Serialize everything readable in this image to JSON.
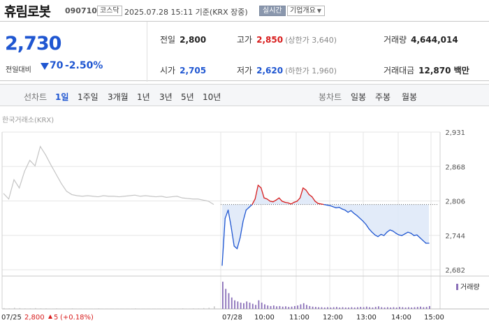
{
  "header": {
    "stock_name": "휴림로봇",
    "stock_code": "090710",
    "market": "코스닥",
    "basis_time": "2025.07.28 15:11 기준(KRX 장중)",
    "realtime_label": "실시간",
    "info_button_label": "기업개요"
  },
  "summary": {
    "current_price": "2,730",
    "change_label": "전일대비",
    "change_direction": "down",
    "change_value": "70",
    "change_percent": "-2.50%",
    "prev_close_label": "전일",
    "prev_close": "2,800",
    "high_label": "고가",
    "high": "2,850",
    "upper_limit": "(상한가 3,640)",
    "volume_label": "거래량",
    "volume": "4,644,014",
    "open_label": "시가",
    "open": "2,705",
    "low_label": "저가",
    "low": "2,620",
    "lower_limit": "(하한가 1,960)",
    "amount_label": "거래대금",
    "amount": "12,870 백만"
  },
  "tabs": {
    "line_label": "선차트",
    "periods": [
      "1일",
      "1주일",
      "3개월",
      "1년",
      "3년",
      "5년",
      "10년"
    ],
    "active_period": "1일",
    "candle_label": "봉차트",
    "candles": [
      "일봉",
      "주봉",
      "월봉"
    ]
  },
  "chart": {
    "source_label": "한국거래소(KRX)",
    "volume_legend": "거래량",
    "prev_day_summary": {
      "date": "07/25",
      "price": "2,800",
      "change": "5",
      "change_pct": "(+0.18%)"
    },
    "colors": {
      "up": "#d81c1c",
      "down": "#1f56d1",
      "prev_day": "#c4c4c4",
      "volume": "#8a6fb8",
      "fill": "#dde8f8"
    }
  },
  "chart_data": {
    "type": "line",
    "y_ticks": [
      "2,931",
      "2,868",
      "2,806",
      "2,744",
      "2,682"
    ],
    "ylim": [
      2682,
      2931
    ],
    "reference_value": 2800,
    "x_ticks": [
      "07/25",
      "07/28",
      "10:00",
      "11:00",
      "12:00",
      "13:00",
      "14:00",
      "15:00"
    ],
    "prev_day_series": {
      "date": "07/25",
      "values": [
        2820,
        2810,
        2845,
        2830,
        2860,
        2880,
        2870,
        2905,
        2890,
        2872,
        2855,
        2838,
        2824,
        2818,
        2816,
        2815,
        2816,
        2815,
        2814,
        2816,
        2815,
        2815,
        2814,
        2815,
        2816,
        2817,
        2815,
        2816,
        2815,
        2814,
        2815,
        2813,
        2814,
        2815,
        2812,
        2811,
        2810,
        2810,
        2808,
        2806,
        2800
      ]
    },
    "today_series": {
      "date": "07/28",
      "time_start": "09:00",
      "time_end": "15:11",
      "values": [
        2690,
        2775,
        2790,
        2760,
        2725,
        2720,
        2740,
        2770,
        2790,
        2795,
        2800,
        2810,
        2835,
        2830,
        2812,
        2810,
        2806,
        2805,
        2808,
        2812,
        2806,
        2804,
        2803,
        2801,
        2804,
        2806,
        2812,
        2830,
        2826,
        2818,
        2814,
        2806,
        2802,
        2801,
        2800,
        2799,
        2798,
        2796,
        2794,
        2795,
        2792,
        2790,
        2786,
        2789,
        2784,
        2780,
        2775,
        2770,
        2764,
        2756,
        2750,
        2745,
        2742,
        2746,
        2744,
        2750,
        2754,
        2752,
        2748,
        2745,
        2744,
        2747,
        2750,
        2748,
        2744,
        2745,
        2740,
        2735,
        2730,
        2730
      ]
    },
    "volume": {
      "prev_day": [
        3,
        2,
        4,
        3,
        2,
        2,
        3,
        2,
        2,
        1,
        2,
        1,
        1,
        2,
        1,
        1,
        1,
        1,
        2,
        1,
        1,
        1,
        1,
        1,
        1,
        2,
        1,
        1,
        1,
        1,
        1,
        1,
        1,
        1,
        2,
        1,
        2,
        2,
        3,
        4,
        9
      ],
      "today": [
        95,
        70,
        55,
        40,
        30,
        26,
        22,
        20,
        26,
        22,
        18,
        14,
        30,
        22,
        16,
        12,
        10,
        12,
        9,
        10,
        8,
        9,
        7,
        8,
        10,
        12,
        16,
        20,
        14,
        10,
        8,
        7,
        6,
        6,
        5,
        6,
        5,
        6,
        7,
        5,
        6,
        5,
        5,
        6,
        5,
        6,
        7,
        6,
        8,
        6,
        5,
        7,
        9,
        6,
        5,
        6,
        5,
        6,
        5,
        7,
        6,
        5,
        6,
        5,
        6,
        7,
        8,
        6,
        7,
        10
      ]
    }
  }
}
